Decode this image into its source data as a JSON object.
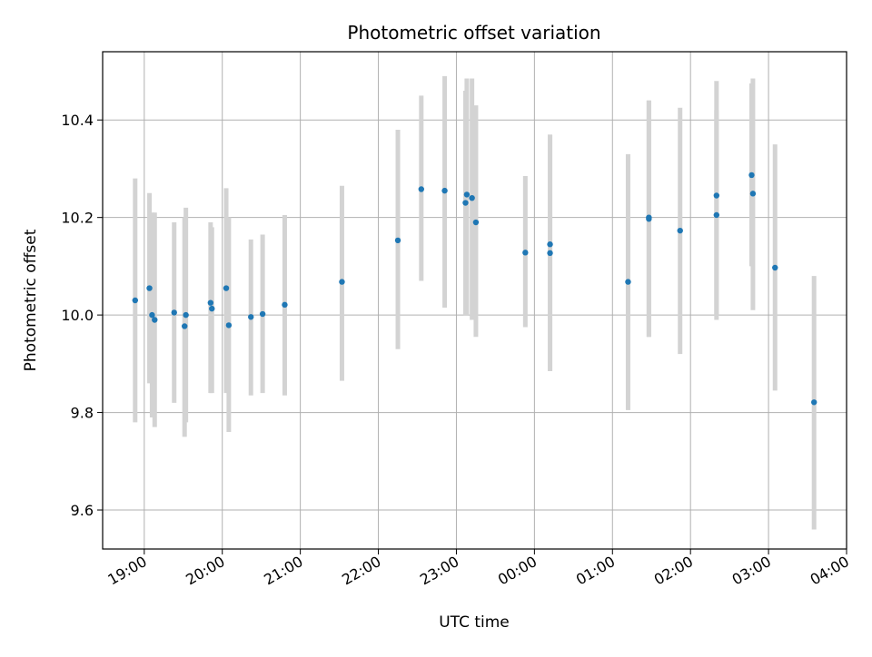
{
  "chart_data": {
    "type": "scatter",
    "title": "Photometric offset variation",
    "xlabel": "UTC time",
    "ylabel": "Photometric offset",
    "x_unit": "UTC time (HH:MM, evening to next morning)",
    "xlim": [
      "18:28",
      "04:00"
    ],
    "ylim": [
      9.52,
      10.54
    ],
    "xticks": [
      "19:00",
      "20:00",
      "21:00",
      "22:00",
      "23:00",
      "00:00",
      "01:00",
      "02:00",
      "03:00",
      "04:00"
    ],
    "yticks": [
      9.6,
      9.8,
      10.0,
      10.2,
      10.4
    ],
    "grid": true,
    "marker_color": "#1f77b4",
    "errorbar_color": "#d3d3d3",
    "points": [
      {
        "time": "18:53",
        "y": 10.03,
        "err_low": 9.78,
        "err_high": 10.28
      },
      {
        "time": "19:04",
        "y": 10.055,
        "err_low": 9.86,
        "err_high": 10.25
      },
      {
        "time": "19:06",
        "y": 10.0,
        "err_low": 9.79,
        "err_high": 10.21
      },
      {
        "time": "19:08",
        "y": 9.99,
        "err_low": 9.77,
        "err_high": 10.21
      },
      {
        "time": "19:23",
        "y": 10.005,
        "err_low": 9.82,
        "err_high": 10.19
      },
      {
        "time": "19:31",
        "y": 9.977,
        "err_low": 9.75,
        "err_high": 10.2
      },
      {
        "time": "19:32",
        "y": 10.0,
        "err_low": 9.78,
        "err_high": 10.22
      },
      {
        "time": "19:51",
        "y": 10.025,
        "err_low": 9.84,
        "err_high": 10.19
      },
      {
        "time": "19:52",
        "y": 10.013,
        "err_low": 9.84,
        "err_high": 10.18
      },
      {
        "time": "20:03",
        "y": 10.055,
        "err_low": 9.84,
        "err_high": 10.26
      },
      {
        "time": "20:05",
        "y": 9.979,
        "err_low": 9.76,
        "err_high": 10.2
      },
      {
        "time": "20:22",
        "y": 9.996,
        "err_low": 9.835,
        "err_high": 10.155
      },
      {
        "time": "20:31",
        "y": 10.002,
        "err_low": 9.84,
        "err_high": 10.165
      },
      {
        "time": "20:48",
        "y": 10.021,
        "err_low": 9.835,
        "err_high": 10.205
      },
      {
        "time": "21:32",
        "y": 10.068,
        "err_low": 9.865,
        "err_high": 10.265
      },
      {
        "time": "22:15",
        "y": 10.153,
        "err_low": 9.93,
        "err_high": 10.38
      },
      {
        "time": "22:33",
        "y": 10.258,
        "err_low": 10.07,
        "err_high": 10.45
      },
      {
        "time": "22:51",
        "y": 10.255,
        "err_low": 10.015,
        "err_high": 10.49
      },
      {
        "time": "23:07",
        "y": 10.23,
        "err_low": 10.0,
        "err_high": 10.46
      },
      {
        "time": "23:08",
        "y": 10.247,
        "err_low": 10.0,
        "err_high": 10.485
      },
      {
        "time": "23:12",
        "y": 10.24,
        "err_low": 9.99,
        "err_high": 10.485
      },
      {
        "time": "23:15",
        "y": 10.19,
        "err_low": 9.955,
        "err_high": 10.43
      },
      {
        "time": "23:53",
        "y": 10.128,
        "err_low": 9.975,
        "err_high": 10.285
      },
      {
        "time": "00:12",
        "y": 10.145,
        "err_low": 9.885,
        "err_high": 10.37
      },
      {
        "time": "00:12",
        "y": 10.127,
        "err_low": 9.885,
        "err_high": 10.37
      },
      {
        "time": "01:12",
        "y": 10.068,
        "err_low": 9.805,
        "err_high": 10.33
      },
      {
        "time": "01:28",
        "y": 10.2,
        "err_low": 9.955,
        "err_high": 10.44
      },
      {
        "time": "01:28",
        "y": 10.197,
        "err_low": 9.955,
        "err_high": 10.44
      },
      {
        "time": "01:52",
        "y": 10.173,
        "err_low": 9.92,
        "err_high": 10.425
      },
      {
        "time": "02:20",
        "y": 10.245,
        "err_low": 10.0,
        "err_high": 10.48
      },
      {
        "time": "02:20",
        "y": 10.205,
        "err_low": 9.99,
        "err_high": 10.42
      },
      {
        "time": "02:47",
        "y": 10.287,
        "err_low": 10.1,
        "err_high": 10.475
      },
      {
        "time": "02:48",
        "y": 10.249,
        "err_low": 10.01,
        "err_high": 10.485
      },
      {
        "time": "03:05",
        "y": 10.097,
        "err_low": 9.845,
        "err_high": 10.35
      },
      {
        "time": "03:35",
        "y": 9.821,
        "err_low": 9.56,
        "err_high": 10.08
      }
    ]
  }
}
